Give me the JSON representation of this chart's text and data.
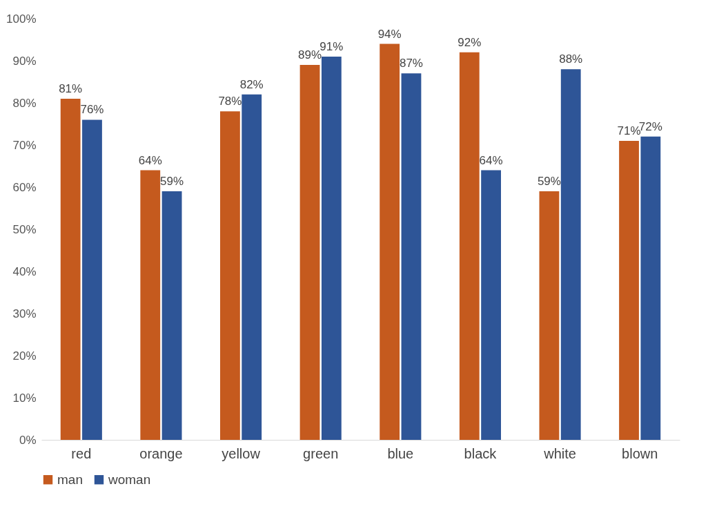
{
  "chart_data": {
    "type": "bar",
    "categories": [
      "red",
      "orange",
      "yellow",
      "green",
      "blue",
      "black",
      "white",
      "blown"
    ],
    "series": [
      {
        "name": "man",
        "color": "#c55a1e",
        "values": [
          81,
          64,
          78,
          89,
          94,
          92,
          59,
          71
        ],
        "value_labels": [
          "81%",
          "64%",
          "78%",
          "89%",
          "94%",
          "92%",
          "59%",
          "71%"
        ]
      },
      {
        "name": "woman",
        "color": "#2e5597",
        "values": [
          76,
          59,
          82,
          91,
          87,
          64,
          88,
          72
        ],
        "value_labels": [
          "76%",
          "59%",
          "82%",
          "91%",
          "87%",
          "64%",
          "88%",
          "72%"
        ]
      }
    ],
    "ylim": [
      0,
      100
    ],
    "yticks": [
      {
        "value": 0,
        "label": "0%"
      },
      {
        "value": 10,
        "label": "10%"
      },
      {
        "value": 20,
        "label": "20%"
      },
      {
        "value": 30,
        "label": "30%"
      },
      {
        "value": 40,
        "label": "40%"
      },
      {
        "value": 50,
        "label": "50%"
      },
      {
        "value": 60,
        "label": "60%"
      },
      {
        "value": 70,
        "label": "70%"
      },
      {
        "value": 80,
        "label": "80%"
      },
      {
        "value": 90,
        "label": "90%"
      },
      {
        "value": 100,
        "label": "100%"
      }
    ],
    "legend": "bottom"
  }
}
